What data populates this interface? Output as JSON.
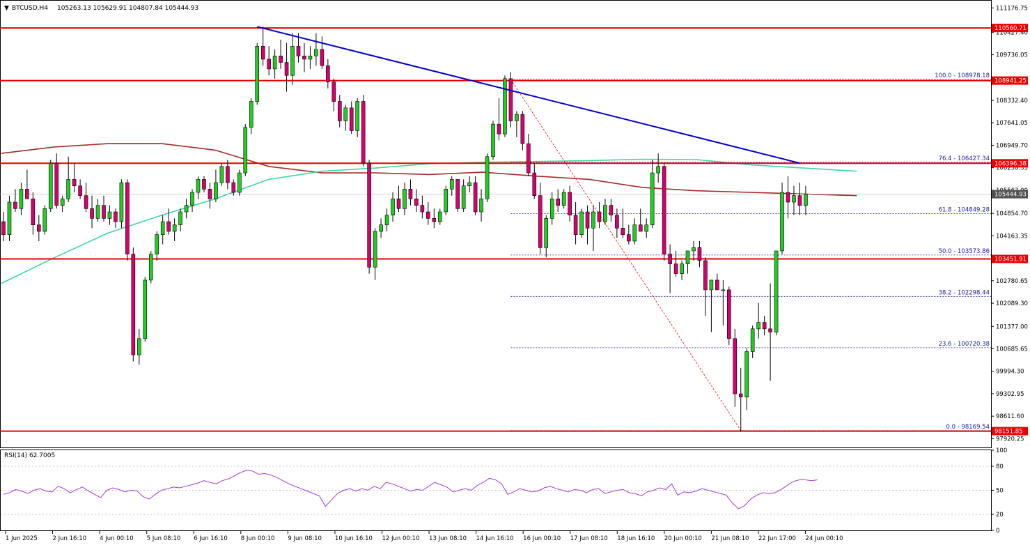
{
  "header": {
    "symbol": "BTCUSD,H4",
    "ohlc": "105263.13 105629.91 104807.84 105444.93"
  },
  "colors": {
    "bull": "#22cc22",
    "bear": "#d8006e",
    "wick": "#000000",
    "horizontal_line": "#ee0000",
    "trendline": "#0000cc",
    "ma_red": "#a52a2a",
    "ma_green": "#3dd6a0",
    "rsi": "#a13bd6",
    "fib": "#1a1a9e",
    "current_price": "#505050"
  },
  "chart_data": [
    {
      "type": "candlestick",
      "symbol": "BTCUSD",
      "timeframe": "H4",
      "ylim": [
        97650,
        111400
      ],
      "y_ticks": [
        "111176.75",
        "110427.40",
        "109736.05",
        "108332.40",
        "107641.05",
        "106949.70",
        "106258.35",
        "105567.00",
        "104854.70",
        "104163.35",
        "103472.00",
        "102780.65",
        "102089.30",
        "101377.00",
        "100685.65",
        "99994.30",
        "99302.95",
        "98611.60",
        "97920.25"
      ],
      "x_ticks": [
        "1 Jun 2025",
        "2 Jun 16:10",
        "4 Jun 00:10",
        "5 Jun 08:10",
        "6 Jun 16:10",
        "8 Jun 00:10",
        "9 Jun 08:10",
        "10 Jun 16:10",
        "12 Jun 00:10",
        "13 Jun 08:10",
        "14 Jun 16:10",
        "16 Jun 00:10",
        "17 Jun 08:10",
        "18 Jun 16:10",
        "20 Jun 00:10",
        "21 Jun 08:10",
        "22 Jun 17:00",
        "24 Jun 00:10"
      ],
      "candles": [
        [
          104600,
          104900,
          104000,
          104200
        ],
        [
          104200,
          105400,
          104000,
          105200
        ],
        [
          105200,
          105600,
          104900,
          105000
        ],
        [
          105000,
          105800,
          104800,
          105600
        ],
        [
          105600,
          106200,
          105300,
          105300
        ],
        [
          105300,
          105500,
          104200,
          104500
        ],
        [
          104500,
          104800,
          104000,
          104300
        ],
        [
          104300,
          105100,
          104200,
          105000
        ],
        [
          105000,
          106500,
          104900,
          106400
        ],
        [
          106400,
          106700,
          105000,
          105100
        ],
        [
          105100,
          105400,
          104900,
          105300
        ],
        [
          105300,
          106600,
          105200,
          105900
        ],
        [
          105900,
          106400,
          105500,
          105700
        ],
        [
          105700,
          105900,
          105300,
          105400
        ],
        [
          105400,
          105800,
          104900,
          105000
        ],
        [
          105000,
          105400,
          104400,
          104700
        ],
        [
          104700,
          105300,
          104600,
          105100
        ],
        [
          105100,
          105400,
          104600,
          104700
        ],
        [
          104700,
          105100,
          104500,
          104900
        ],
        [
          104900,
          105000,
          104400,
          104600
        ],
        [
          104600,
          105900,
          104400,
          105800
        ],
        [
          105800,
          105900,
          103400,
          103600
        ],
        [
          103600,
          103800,
          100300,
          100500
        ],
        [
          100500,
          101300,
          100200,
          101000
        ],
        [
          101000,
          102900,
          100900,
          102800
        ],
        [
          102800,
          103700,
          102700,
          103600
        ],
        [
          103600,
          104300,
          103400,
          104200
        ],
        [
          104200,
          104800,
          103900,
          104600
        ],
        [
          104600,
          105000,
          104200,
          104300
        ],
        [
          104300,
          104700,
          104000,
          104500
        ],
        [
          104500,
          105000,
          104300,
          104900
        ],
        [
          104900,
          105300,
          104700,
          105100
        ],
        [
          105100,
          105600,
          104900,
          105500
        ],
        [
          105500,
          106000,
          105300,
          105900
        ],
        [
          105900,
          106000,
          105500,
          105600
        ],
        [
          105600,
          105800,
          105000,
          105300
        ],
        [
          105300,
          106200,
          105200,
          105800
        ],
        [
          105800,
          106400,
          105700,
          106300
        ],
        [
          106300,
          106500,
          105600,
          105800
        ],
        [
          105800,
          105900,
          105400,
          105500
        ],
        [
          105500,
          106200,
          105400,
          106100
        ],
        [
          106100,
          107600,
          106000,
          107500
        ],
        [
          107500,
          108400,
          107300,
          108300
        ],
        [
          108300,
          110100,
          108200,
          110000
        ],
        [
          110000,
          110600,
          109400,
          109600
        ],
        [
          109600,
          110000,
          109100,
          109300
        ],
        [
          109300,
          109900,
          109000,
          109700
        ],
        [
          109700,
          110200,
          109300,
          109500
        ],
        [
          109500,
          110100,
          108600,
          109100
        ],
        [
          109100,
          110400,
          108800,
          110000
        ],
        [
          110000,
          110400,
          109500,
          109700
        ],
        [
          109700,
          110100,
          109200,
          109600
        ],
        [
          109600,
          110000,
          109300,
          109700
        ],
        [
          109700,
          110400,
          109400,
          109900
        ],
        [
          109900,
          110300,
          109300,
          109400
        ],
        [
          109400,
          109600,
          108700,
          108900
        ],
        [
          108900,
          109000,
          108000,
          108300
        ],
        [
          108300,
          108500,
          107500,
          107700
        ],
        [
          107700,
          108200,
          107400,
          108100
        ],
        [
          108100,
          108300,
          107300,
          107400
        ],
        [
          107400,
          108400,
          107200,
          108300
        ],
        [
          108300,
          108500,
          106300,
          106400
        ],
        [
          106400,
          106500,
          103000,
          103200
        ],
        [
          103200,
          104400,
          102800,
          104300
        ],
        [
          104300,
          104700,
          104100,
          104500
        ],
        [
          104500,
          105000,
          104300,
          104800
        ],
        [
          104800,
          105500,
          104600,
          105300
        ],
        [
          105300,
          105700,
          104900,
          105000
        ],
        [
          105000,
          105800,
          104800,
          105600
        ],
        [
          105600,
          105900,
          105100,
          105300
        ],
        [
          105300,
          105600,
          104900,
          105100
        ],
        [
          105100,
          105400,
          104700,
          104900
        ],
        [
          104900,
          105200,
          104500,
          104700
        ],
        [
          104700,
          105000,
          104400,
          104600
        ],
        [
          104600,
          105000,
          104500,
          104900
        ],
        [
          104900,
          105700,
          104800,
          105600
        ],
        [
          105600,
          106000,
          105400,
          105900
        ],
        [
          105900,
          105900,
          104900,
          105000
        ],
        [
          105000,
          105900,
          104900,
          105700
        ],
        [
          105700,
          106000,
          105500,
          105800
        ],
        [
          105800,
          106000,
          104800,
          104900
        ],
        [
          104900,
          105600,
          104600,
          105300
        ],
        [
          105300,
          106700,
          105200,
          106600
        ],
        [
          106600,
          107700,
          106500,
          107600
        ],
        [
          107600,
          108400,
          107100,
          107300
        ],
        [
          107300,
          109100,
          107200,
          109000
        ],
        [
          109000,
          109200,
          107500,
          107700
        ],
        [
          107700,
          108000,
          107200,
          107900
        ],
        [
          107900,
          108000,
          106800,
          107000
        ],
        [
          107000,
          107300,
          106000,
          106100
        ],
        [
          106100,
          106400,
          105300,
          105400
        ],
        [
          105400,
          105800,
          103600,
          103800
        ],
        [
          103800,
          104800,
          103500,
          104700
        ],
        [
          104700,
          105500,
          104500,
          105300
        ],
        [
          105300,
          105600,
          104900,
          105100
        ],
        [
          105100,
          105600,
          105000,
          105500
        ],
        [
          105500,
          105700,
          104600,
          104800
        ],
        [
          104800,
          105200,
          103900,
          104200
        ],
        [
          104200,
          105000,
          104100,
          104900
        ],
        [
          104900,
          105100,
          103900,
          104400
        ],
        [
          104400,
          105100,
          103700,
          104900
        ],
        [
          104900,
          105200,
          104400,
          104600
        ],
        [
          104600,
          105300,
          104500,
          105100
        ],
        [
          105100,
          105300,
          104600,
          104800
        ],
        [
          104800,
          105000,
          104100,
          104400
        ],
        [
          104400,
          105000,
          104100,
          104200
        ],
        [
          104200,
          104500,
          103900,
          104000
        ],
        [
          104000,
          104700,
          103900,
          104500
        ],
        [
          104500,
          105000,
          104300,
          104300
        ],
        [
          104300,
          104700,
          104100,
          104500
        ],
        [
          104500,
          106500,
          104400,
          106100
        ],
        [
          106100,
          106700,
          105800,
          106300
        ],
        [
          106300,
          106400,
          103400,
          103600
        ],
        [
          103600,
          103900,
          102400,
          103300
        ],
        [
          103300,
          103700,
          102900,
          103000
        ],
        [
          103000,
          103400,
          102800,
          103300
        ],
        [
          103300,
          103700,
          103000,
          103700
        ],
        [
          103700,
          104000,
          103400,
          103800
        ],
        [
          103800,
          104000,
          103200,
          103400
        ],
        [
          103400,
          103500,
          101700,
          102500
        ],
        [
          102500,
          102800,
          101200,
          102800
        ],
        [
          102800,
          103000,
          102500,
          102500
        ],
        [
          102500,
          102800,
          101400,
          102500
        ],
        [
          102500,
          102600,
          100800,
          101000
        ],
        [
          101000,
          101300,
          98900,
          99300
        ],
        [
          99300,
          100100,
          98150,
          99200
        ],
        [
          99200,
          100700,
          98800,
          100600
        ],
        [
          100600,
          101400,
          100400,
          101300
        ],
        [
          101300,
          102100,
          101000,
          101500
        ],
        [
          101500,
          101700,
          101100,
          101300
        ],
        [
          101300,
          102700,
          99700,
          101200
        ],
        [
          101200,
          103700,
          101100,
          103700
        ],
        [
          103700,
          105800,
          103600,
          105500
        ],
        [
          105500,
          106000,
          104700,
          105200
        ],
        [
          105200,
          105700,
          104800,
          105400
        ],
        [
          105400,
          105800,
          104800,
          105100
        ],
        [
          105100,
          105700,
          104800,
          105444.93
        ]
      ],
      "ma_red": [
        106700,
        106900,
        107000,
        107000,
        106800,
        106300,
        106100,
        106100,
        106050,
        106120,
        106000,
        105900,
        105650,
        105550,
        105500,
        105450,
        105400
      ],
      "ma_green": [
        102700,
        103500,
        104250,
        104800,
        105300,
        105900,
        106150,
        106250,
        106380,
        106430,
        106450,
        106480,
        106520,
        106510,
        106350,
        106250,
        106150
      ],
      "horizontal_levels": [
        {
          "label": "110560.71",
          "value": 110560.71
        },
        {
          "label": "108941.25",
          "value": 108941.25
        },
        {
          "label": "106396.38",
          "value": 106396.38
        },
        {
          "label": "103451.91",
          "value": 103451.91
        },
        {
          "label": "98151.85",
          "value": 98151.85
        }
      ],
      "current_price": {
        "label": "105444.93",
        "value": 105444.93
      },
      "fibonacci": [
        {
          "ratio": "100.0",
          "label": "100.0 - 108978.18",
          "value": 108978.18
        },
        {
          "ratio": "76.4",
          "label": "76.4 - 106427.34",
          "value": 106427.34
        },
        {
          "ratio": "61.8",
          "label": "61.8 - 104849.28",
          "value": 104849.28
        },
        {
          "ratio": "50.0",
          "label": "50.0 - 103573.86",
          "value": 103573.86
        },
        {
          "ratio": "38.2",
          "label": "38.2 - 102298.44",
          "value": 102298.44
        },
        {
          "ratio": "23.6",
          "label": "23.6 - 100720.38",
          "value": 100720.38
        },
        {
          "ratio": "0.0",
          "label": "0.0 - 98169.54",
          "value": 98169.54
        }
      ],
      "trendline": {
        "from": {
          "candle": 43,
          "value": 110600
        },
        "to": {
          "candle": 135,
          "value": 106400
        }
      },
      "fib_diagonal": {
        "from": {
          "candle": 86,
          "value": 108978.18
        },
        "to": {
          "candle": 125,
          "value": 98169.54
        }
      }
    },
    {
      "type": "line",
      "title": "RSI(14) 62.7005",
      "ylim": [
        0,
        100
      ],
      "y_ticks": [
        "100",
        "80",
        "50",
        "20",
        "0"
      ],
      "levels": [
        80,
        50,
        20
      ],
      "values": [
        45,
        47,
        51,
        49,
        46,
        50,
        52,
        49,
        48,
        55,
        52,
        47,
        51,
        54,
        49,
        45,
        41,
        50,
        53,
        51,
        48,
        50,
        49,
        42,
        39,
        45,
        50,
        52,
        54,
        53,
        55,
        57,
        59,
        62,
        60,
        58,
        62,
        64,
        68,
        72,
        75,
        74,
        70,
        71,
        69,
        66,
        62,
        58,
        55,
        52,
        49,
        46,
        43,
        30,
        38,
        46,
        50,
        52,
        49,
        52,
        50,
        55,
        52,
        60,
        58,
        55,
        52,
        49,
        51,
        50,
        55,
        60,
        57,
        54,
        48,
        50,
        52,
        50,
        56,
        60,
        65,
        63,
        58,
        45,
        48,
        52,
        50,
        48,
        49,
        53,
        55,
        52,
        50,
        48,
        51,
        50,
        47,
        51,
        52,
        46,
        48,
        50,
        51,
        47,
        46,
        43,
        48,
        50,
        53,
        51,
        58,
        44,
        48,
        47,
        49,
        52,
        50,
        48,
        46,
        44,
        34,
        27,
        31,
        39,
        44,
        47,
        46,
        47,
        51,
        56,
        61,
        63,
        63,
        62,
        63
      ]
    }
  ]
}
